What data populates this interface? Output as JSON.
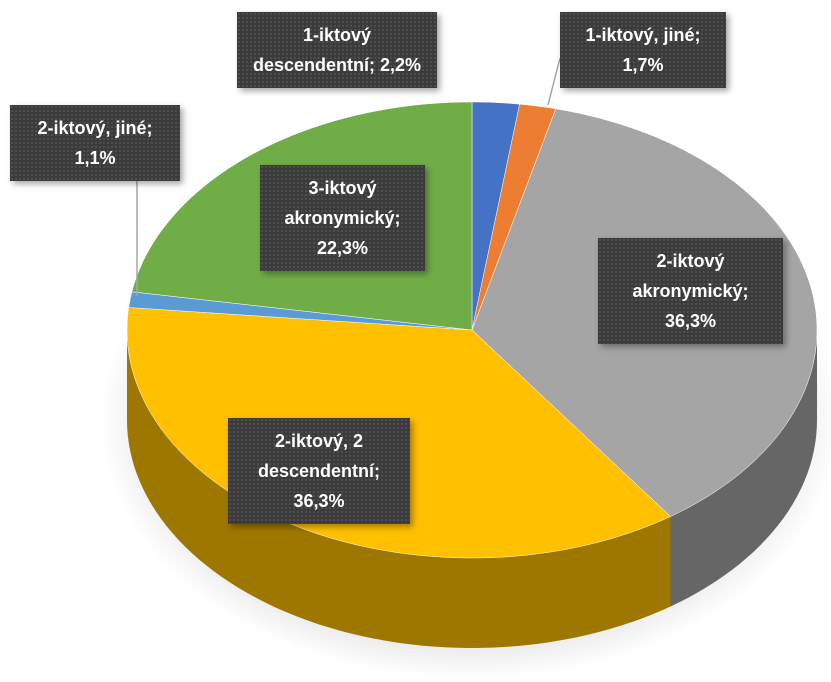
{
  "chart_data": {
    "type": "pie",
    "categories": [
      "1-iktový descendentní",
      "1-iktový, jiné",
      "2-iktový akronymický",
      "2-iktový, 2 descendentní",
      "2-iktový, jiné",
      "3-iktový akronymický"
    ],
    "values": [
      2.2,
      1.7,
      36.3,
      36.3,
      1.1,
      22.3
    ],
    "value_labels": [
      "2,2%",
      "1,7%",
      "36,3%",
      "36,3%",
      "1,1%",
      "22,3%"
    ],
    "label_separator": ";",
    "colors": [
      "#4472c4",
      "#ed7d31",
      "#a5a5a5",
      "#ffc000",
      "#5b9bd5",
      "#70ad47"
    ],
    "start_angle": 0,
    "direction": "clockwise",
    "three_d": true
  }
}
